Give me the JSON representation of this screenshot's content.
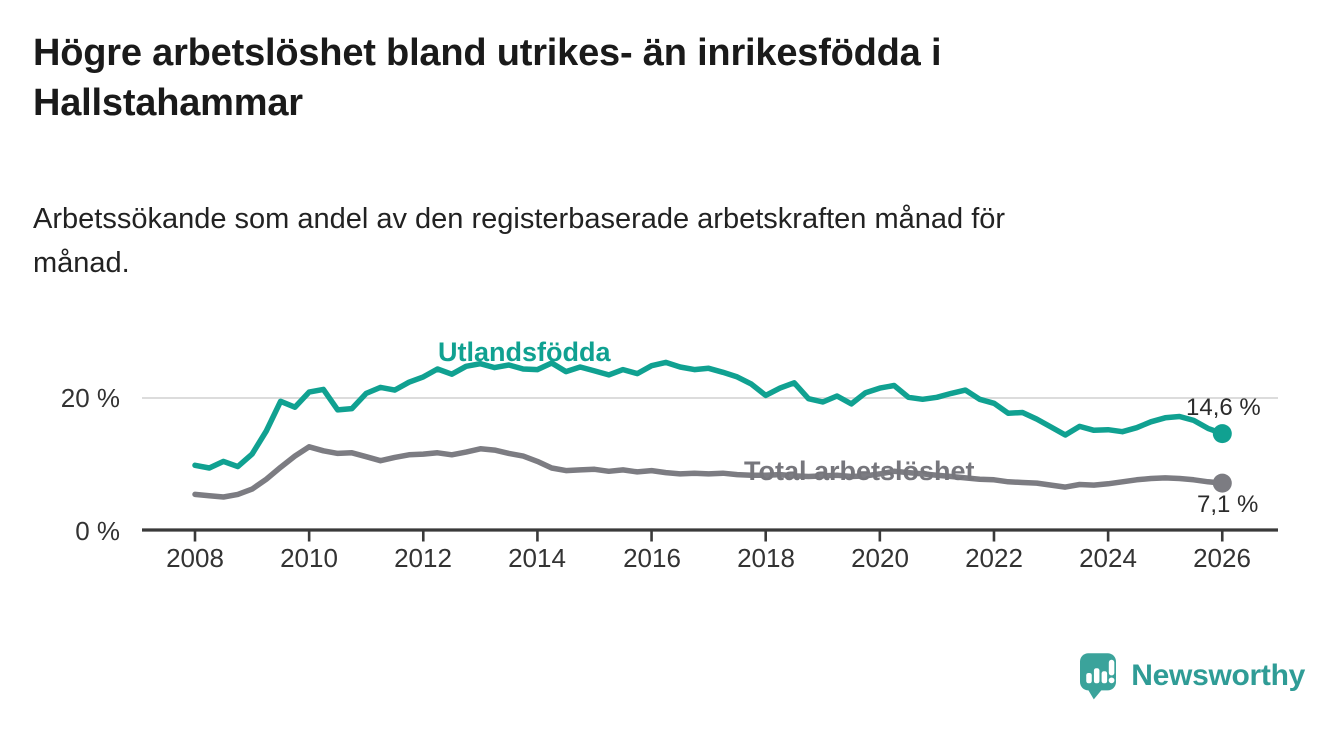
{
  "header": {
    "title_line1": "Högre arbetslöshet bland utrikes- än inrikesfödda i",
    "title_line2": "Hallstahammar",
    "subtitle_line1": "Arbetssökande som andel av den registerbaserade arbetskraften månad för",
    "subtitle_line2": "månad."
  },
  "chart_data": {
    "type": "line",
    "title": "Arbetssökande som andel av den registerbaserade arbetskraften månad för månad",
    "unit": "%",
    "xlim": [
      2007.2,
      2027.0
    ],
    "ylim": [
      0,
      27
    ],
    "grid": "horizontal-at-20-only",
    "legend_position": "inline-labels-on-lines",
    "x_ticks": [
      2008,
      2010,
      2012,
      2014,
      2016,
      2018,
      2020,
      2022,
      2024,
      2026
    ],
    "x_tick_labels": [
      "2008",
      "2010",
      "2012",
      "2014",
      "2016",
      "2018",
      "2020",
      "2022",
      "2024",
      "2026"
    ],
    "y_ticks": [
      {
        "value": 0,
        "label": "0 %"
      },
      {
        "value": 20,
        "label": "20 %"
      }
    ],
    "gridlines": [
      20
    ],
    "x": [
      2008,
      2008.25,
      2008.5,
      2008.75,
      2009,
      2009.25,
      2009.5,
      2009.75,
      2010,
      2010.25,
      2010.5,
      2010.75,
      2011,
      2011.25,
      2011.5,
      2011.75,
      2012,
      2012.25,
      2012.5,
      2012.75,
      2013,
      2013.25,
      2013.5,
      2013.75,
      2014,
      2014.25,
      2014.5,
      2014.75,
      2015,
      2015.25,
      2015.5,
      2015.75,
      2016,
      2016.25,
      2016.5,
      2016.75,
      2017,
      2017.25,
      2017.5,
      2017.75,
      2018,
      2018.25,
      2018.5,
      2018.75,
      2019,
      2019.25,
      2019.5,
      2019.75,
      2020,
      2020.25,
      2020.5,
      2020.75,
      2021,
      2021.25,
      2021.5,
      2021.75,
      2022,
      2022.25,
      2022.5,
      2022.75,
      2023,
      2023.25,
      2023.5,
      2023.75,
      2024,
      2024.25,
      2024.5,
      2024.75,
      2025,
      2025.25,
      2025.5,
      2025.75,
      2026
    ],
    "series": [
      {
        "name": "Utlandsfödda",
        "color": "#10A191",
        "end_label": "14,6 %",
        "end_value": 14.6,
        "values": [
          9.8,
          9.4,
          10.4,
          9.6,
          11.5,
          15.0,
          19.5,
          18.6,
          20.9,
          21.3,
          18.2,
          18.4,
          20.7,
          21.6,
          21.2,
          22.4,
          23.2,
          24.4,
          23.6,
          24.8,
          25.2,
          24.6,
          25.0,
          24.4,
          24.3,
          25.3,
          24.0,
          24.7,
          24.1,
          23.5,
          24.3,
          23.7,
          24.9,
          25.4,
          24.7,
          24.3,
          24.5,
          23.9,
          23.2,
          22.1,
          20.4,
          21.5,
          22.3,
          19.9,
          19.4,
          20.3,
          19.1,
          20.8,
          21.5,
          21.9,
          20.1,
          19.8,
          20.1,
          20.7,
          21.2,
          19.8,
          19.2,
          17.7,
          17.8,
          16.8,
          15.6,
          14.4,
          15.7,
          15.1,
          15.2,
          14.9,
          15.5,
          16.4,
          17.0,
          17.2,
          16.6,
          15.4,
          14.6
        ]
      },
      {
        "name": "Total arbetslöshet",
        "color": "#7C7C82",
        "end_label": "7,1 %",
        "end_value": 7.1,
        "values": [
          5.4,
          5.2,
          5.0,
          5.4,
          6.2,
          7.7,
          9.5,
          11.2,
          12.6,
          12.0,
          11.6,
          11.7,
          11.1,
          10.5,
          11.0,
          11.4,
          11.5,
          11.7,
          11.4,
          11.8,
          12.3,
          12.1,
          11.6,
          11.2,
          10.4,
          9.4,
          9.0,
          9.1,
          9.2,
          8.9,
          9.1,
          8.8,
          9.0,
          8.7,
          8.5,
          8.6,
          8.5,
          8.6,
          8.4,
          8.3,
          8.3,
          8.4,
          8.2,
          8.1,
          8.2,
          8.3,
          8.1,
          8.2,
          8.5,
          8.9,
          8.7,
          8.5,
          8.3,
          8.1,
          7.9,
          7.7,
          7.6,
          7.3,
          7.2,
          7.1,
          6.8,
          6.5,
          6.9,
          6.8,
          7.0,
          7.3,
          7.6,
          7.8,
          7.9,
          7.8,
          7.6,
          7.3,
          7.1
        ]
      }
    ]
  },
  "branding": {
    "logo_text": "Newsworthy",
    "logo_icon": "bar-chart-speech-bubble-icon",
    "logo_color": "#2F9C96"
  }
}
